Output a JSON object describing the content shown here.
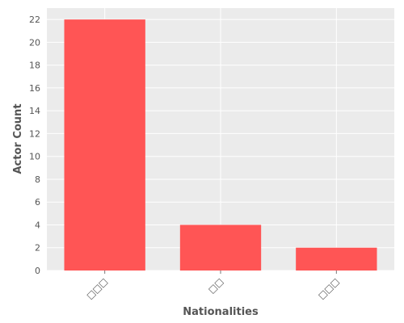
{
  "chart_data": {
    "type": "bar",
    "categories": [
      "□□□",
      "□□",
      "□□□"
    ],
    "values": [
      22,
      4,
      2
    ],
    "xlabel": "Nationalities",
    "ylabel": "Actor Count",
    "ylim": [
      0,
      23
    ],
    "yticks": [
      0,
      2,
      4,
      6,
      8,
      10,
      12,
      14,
      16,
      18,
      20,
      22
    ],
    "grid": true,
    "bar_color": "#ff5555",
    "background_color": "#ebebeb",
    "grid_color": "#ffffff"
  }
}
